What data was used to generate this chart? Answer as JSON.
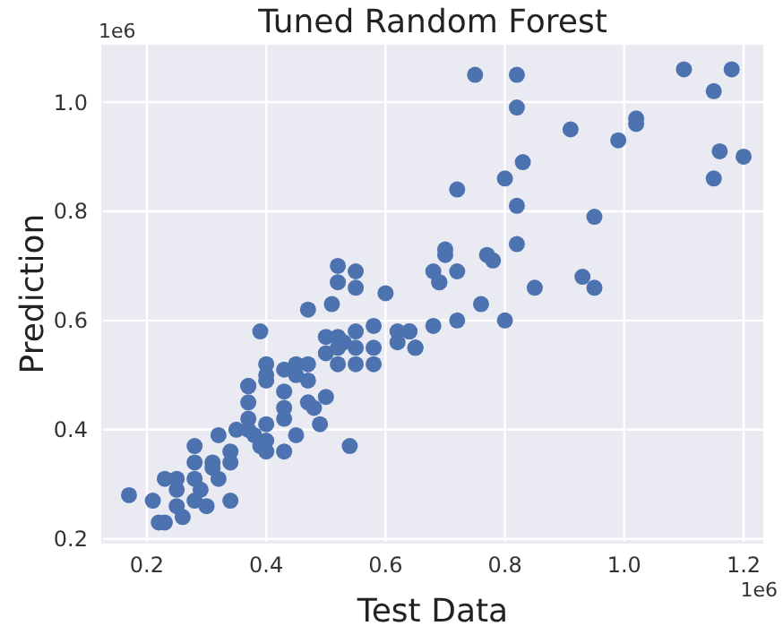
{
  "chart_data": {
    "type": "scatter",
    "title": "Tuned Random Forest",
    "xlabel": "Test Data",
    "ylabel": "Prediction",
    "annotations": [
      "1e6",
      "1e6"
    ],
    "xlim": [
      0.125,
      1.233
    ],
    "ylim": [
      0.193,
      1.105
    ],
    "xticks": [
      0.2,
      0.4,
      0.6,
      0.8,
      {
        "value": 1,
        "label": "1.0"
      },
      1.2
    ],
    "yticks": [
      0.2,
      0.4,
      0.6,
      0.8,
      {
        "value": 1,
        "label": "1.0"
      }
    ],
    "grid": true,
    "marker": "circle",
    "series": [
      {
        "color": "#4c72b0",
        "x": [
          0.17,
          0.21,
          0.22,
          0.23,
          0.23,
          0.25,
          0.25,
          0.25,
          0.26,
          0.28,
          0.28,
          0.28,
          0.29,
          0.28,
          0.3,
          0.31,
          0.31,
          0.32,
          0.32,
          0.34,
          0.34,
          0.35,
          0.34,
          0.37,
          0.37,
          0.37,
          0.37,
          0.37,
          0.38,
          0.39,
          0.4,
          0.4,
          0.4,
          0.39,
          0.4,
          0.4,
          0.4,
          0.43,
          0.43,
          0.43,
          0.43,
          0.43,
          0.45,
          0.45,
          0.47,
          0.47,
          0.45,
          0.47,
          0.48,
          0.5,
          0.49,
          0.47,
          0.51,
          0.5,
          0.5,
          0.52,
          0.52,
          0.52,
          0.53,
          0.55,
          0.55,
          0.55,
          0.58,
          0.58,
          0.58,
          0.54,
          0.52,
          0.52,
          0.55,
          0.55,
          0.6,
          0.62,
          0.64,
          0.62,
          0.65,
          0.64,
          0.65,
          0.68,
          0.72,
          0.76,
          0.8,
          0.68,
          0.69,
          0.69,
          0.72,
          0.7,
          0.7,
          0.77,
          0.78,
          0.82,
          0.85,
          0.93,
          0.95,
          0.95,
          0.82,
          0.8,
          0.72,
          0.83,
          0.82,
          0.75,
          0.82,
          0.91,
          0.99,
          1.02,
          1.02,
          1.1,
          1.18,
          1.15,
          1.16,
          1.2,
          1.15
        ],
        "values": [
          0.28,
          0.27,
          0.23,
          0.23,
          0.31,
          0.31,
          0.29,
          0.26,
          0.24,
          0.37,
          0.34,
          0.31,
          0.29,
          0.27,
          0.26,
          0.34,
          0.33,
          0.31,
          0.39,
          0.36,
          0.34,
          0.4,
          0.27,
          0.48,
          0.48,
          0.45,
          0.42,
          0.4,
          0.39,
          0.37,
          0.41,
          0.36,
          0.38,
          0.58,
          0.52,
          0.49,
          0.5,
          0.51,
          0.47,
          0.44,
          0.42,
          0.36,
          0.52,
          0.5,
          0.52,
          0.49,
          0.39,
          0.45,
          0.44,
          0.46,
          0.41,
          0.62,
          0.63,
          0.57,
          0.54,
          0.57,
          0.55,
          0.52,
          0.56,
          0.58,
          0.55,
          0.52,
          0.55,
          0.52,
          0.59,
          0.37,
          0.7,
          0.67,
          0.69,
          0.66,
          0.65,
          0.58,
          0.58,
          0.56,
          0.55,
          0.58,
          0.55,
          0.59,
          0.6,
          0.63,
          0.6,
          0.69,
          0.67,
          0.67,
          0.69,
          0.73,
          0.72,
          0.72,
          0.71,
          0.74,
          0.66,
          0.68,
          0.66,
          0.79,
          0.81,
          0.86,
          0.84,
          0.89,
          0.99,
          1.05,
          1.05,
          0.95,
          0.93,
          0.97,
          0.96,
          1.06,
          1.06,
          1.02,
          0.91,
          0.9,
          0.86
        ]
      }
    ]
  }
}
